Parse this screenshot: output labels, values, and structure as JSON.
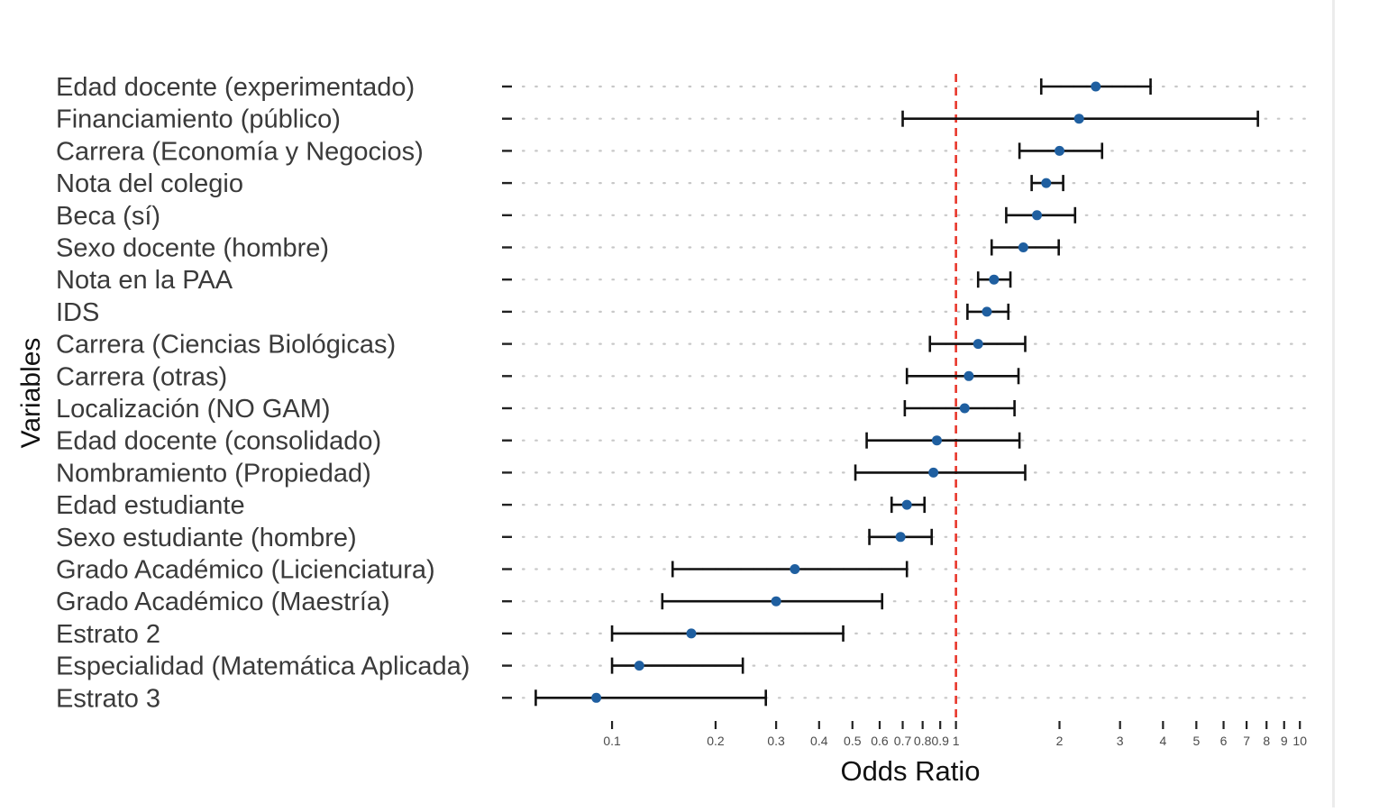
{
  "chart_data": {
    "type": "forest",
    "title": "",
    "xlabel": "Odds Ratio",
    "ylabel": "Variables",
    "x_scale": "log",
    "xlim": [
      0.055,
      11
    ],
    "reference_line": 1,
    "x_ticks": [
      0.1,
      0.2,
      0.3,
      0.4,
      0.5,
      0.6,
      0.7,
      0.8,
      0.9,
      1,
      2,
      3,
      4,
      5,
      6,
      7,
      8,
      9,
      10
    ],
    "x_tick_labels": [
      "0.1",
      "0.2",
      "0.3",
      "0.4",
      "0.5",
      "0.6",
      "0.7",
      "0.8",
      "0.9",
      "1",
      "2",
      "3",
      "4",
      "5",
      "6",
      "7",
      "8",
      "9",
      "10"
    ],
    "grid": "dotted horizontal",
    "colors": {
      "point": "#1f5fa0",
      "interval": "#111111",
      "reference": "#e8372c",
      "grid": "#c8c8c8"
    },
    "rows": [
      {
        "label": "Edad docente (experimentado)",
        "or": 2.55,
        "low": 1.77,
        "high": 3.68
      },
      {
        "label": "Financiamiento (público)",
        "or": 2.28,
        "low": 0.7,
        "high": 7.55
      },
      {
        "label": "Carrera (Economía y Negocios)",
        "or": 2.0,
        "low": 1.53,
        "high": 2.66
      },
      {
        "label": "Nota del colegio",
        "or": 1.83,
        "low": 1.66,
        "high": 2.05
      },
      {
        "label": "Beca (sí)",
        "or": 1.72,
        "low": 1.4,
        "high": 2.22
      },
      {
        "label": " Sexo docente (hombre)",
        "or": 1.57,
        "low": 1.27,
        "high": 1.99
      },
      {
        "label": "Nota en la PAA",
        "or": 1.29,
        "low": 1.16,
        "high": 1.44
      },
      {
        "label": "IDS",
        "or": 1.23,
        "low": 1.08,
        "high": 1.42
      },
      {
        "label": "Carrera (Ciencias Biológicas)",
        "or": 1.16,
        "low": 0.84,
        "high": 1.59
      },
      {
        "label": "Carrera (otras)",
        "or": 1.09,
        "low": 0.72,
        "high": 1.52
      },
      {
        "label": "Localización (NO GAM)",
        "or": 1.06,
        "low": 0.71,
        "high": 1.48
      },
      {
        "label": "Edad docente (consolidado)",
        "or": 0.88,
        "low": 0.55,
        "high": 1.53
      },
      {
        "label": "Nombramiento (Propiedad)",
        "or": 0.86,
        "low": 0.51,
        "high": 1.59
      },
      {
        "label": "Edad estudiante",
        "or": 0.72,
        "low": 0.65,
        "high": 0.81
      },
      {
        "label": " Sexo estudiante (hombre)",
        "or": 0.69,
        "low": 0.56,
        "high": 0.85
      },
      {
        "label": "Grado Académico (Licienciatura)",
        "or": 0.34,
        "low": 0.15,
        "high": 0.72
      },
      {
        "label": "Grado Académico (Maestría)",
        "or": 0.3,
        "low": 0.14,
        "high": 0.61
      },
      {
        "label": "Estrato 2",
        "or": 0.17,
        "low": 0.1,
        "high": 0.47
      },
      {
        "label": "Especialidad (Matemática Aplicada)",
        "or": 0.12,
        "low": 0.1,
        "high": 0.24
      },
      {
        "label": "Estrato 3",
        "or": 0.09,
        "low": 0.06,
        "high": 0.28
      }
    ]
  }
}
